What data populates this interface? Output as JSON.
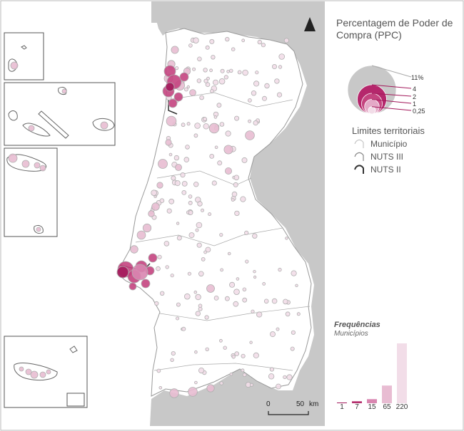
{
  "legend": {
    "title": "Percentagem de Poder de Compra (PPC)",
    "size_values": [
      "11%",
      "4",
      "2",
      "1",
      "0,25"
    ],
    "size_fractions": [
      11,
      4,
      2,
      1,
      0.25
    ],
    "color_scale": [
      "#f2dde8",
      "#e8bcd2",
      "#d986b0",
      "#c4447f",
      "#a3195b"
    ]
  },
  "limits": {
    "title": "Limites territoriais",
    "items": [
      "Município",
      "NUTS III",
      "NUTS II"
    ]
  },
  "frequencies": {
    "title": "Frequências",
    "subtitle": "Municípios",
    "categories": [
      "1",
      "7",
      "15",
      "65",
      "220"
    ],
    "values": [
      1,
      7,
      15,
      65,
      220
    ],
    "colors": [
      "#a3195b",
      "#b5316e",
      "#d986b0",
      "#e8bcd2",
      "#f2dde8"
    ]
  },
  "scale": {
    "start": "0",
    "end": "50",
    "unit": "km"
  },
  "colors": {
    "sea_gray": "#c8c8c8",
    "land": "#ffffff",
    "border": "#999999"
  }
}
